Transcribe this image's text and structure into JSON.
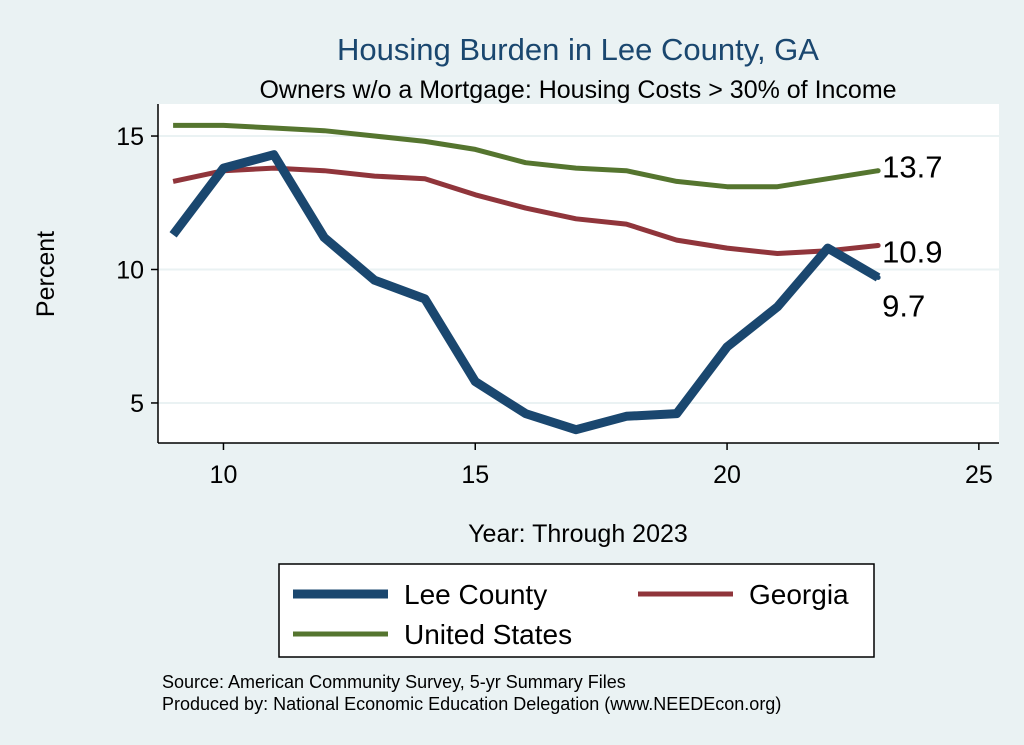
{
  "chart_data": {
    "type": "line",
    "title": "Housing Burden in Lee County, GA",
    "subtitle": "Owners w/o a Mortgage: Housing Costs > 30% of Income",
    "xlabel": "Year: Through 2023",
    "ylabel": "Percent",
    "xlim": [
      8.7,
      25.4
    ],
    "ylim": [
      3.5,
      16.2
    ],
    "xticks": [
      10,
      15,
      20,
      25
    ],
    "yticks": [
      5,
      10,
      15
    ],
    "grid": true,
    "legend_position": "bottom",
    "x": [
      9,
      10,
      11,
      12,
      13,
      14,
      15,
      16,
      17,
      18,
      19,
      20,
      21,
      22,
      23
    ],
    "series": [
      {
        "name": "Lee County",
        "color": "#1a476f",
        "values": [
          11.3,
          13.8,
          14.3,
          11.2,
          9.6,
          8.9,
          5.8,
          4.6,
          4.0,
          4.5,
          4.6,
          7.1,
          8.6,
          10.8,
          9.7
        ],
        "end_label": "9.7"
      },
      {
        "name": "Georgia",
        "color": "#90353b",
        "values": [
          13.3,
          13.7,
          13.8,
          13.7,
          13.5,
          13.4,
          12.8,
          12.3,
          11.9,
          11.7,
          11.1,
          10.8,
          10.6,
          10.7,
          10.9
        ],
        "end_label": "10.9"
      },
      {
        "name": "United States",
        "color": "#55752f",
        "values": [
          15.4,
          15.4,
          15.3,
          15.2,
          15.0,
          14.8,
          14.5,
          14.0,
          13.8,
          13.7,
          13.3,
          13.1,
          13.1,
          13.4,
          13.7
        ],
        "end_label": "13.7"
      }
    ],
    "source_lines": [
      "Source: American Community Survey, 5-yr Summary Files",
      "Produced by: National Economic Education Delegation (www.NEEDEcon.org)"
    ]
  }
}
